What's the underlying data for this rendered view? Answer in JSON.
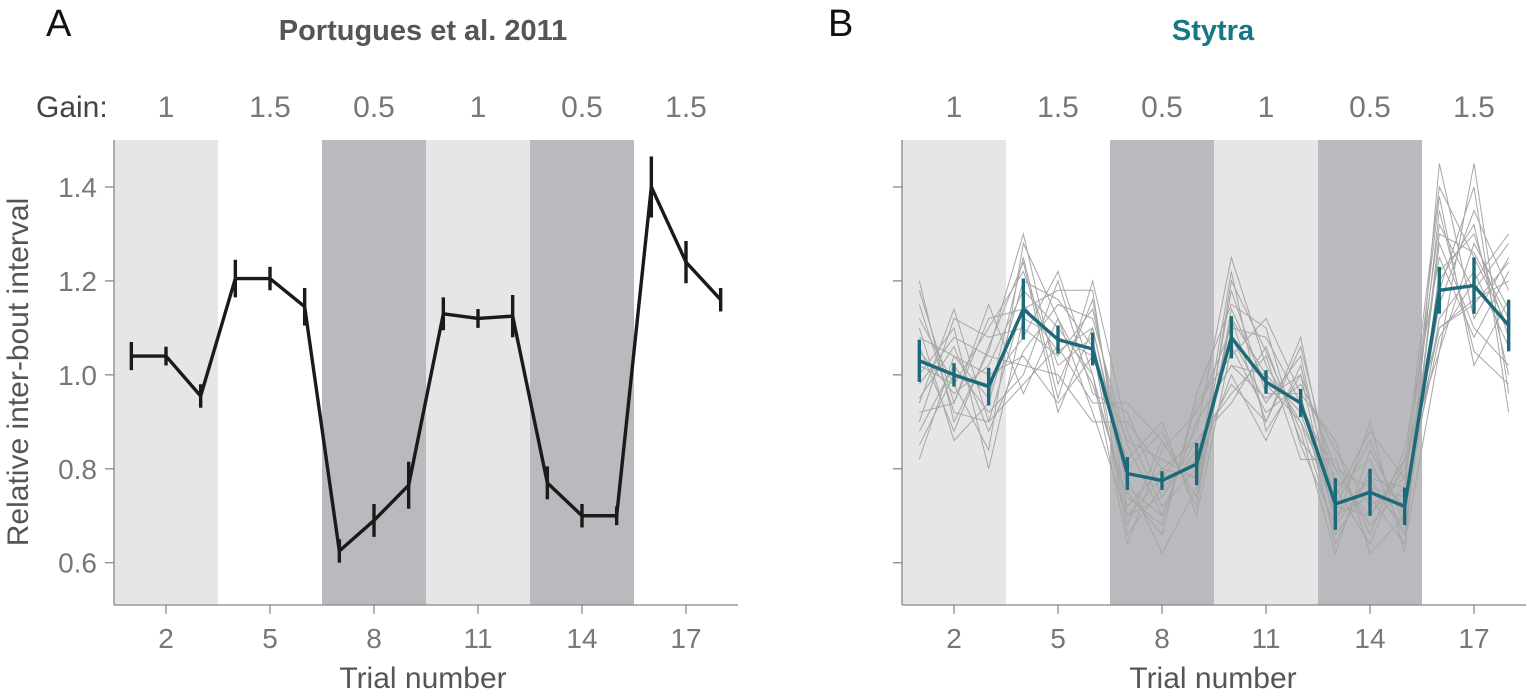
{
  "figure": {
    "panels": [
      {
        "letter": "A",
        "title": "Portugues et al. 2011",
        "gain_label": "Gain:"
      },
      {
        "letter": "B",
        "title": "Stytra",
        "gain_label": ""
      }
    ],
    "colors": {
      "panel_b_title": "#147985",
      "series_a": "#1a1a1a",
      "series_b": "#1c6a79",
      "individual_traces": "#a6a6a6",
      "gain_1": "#e6e6e6",
      "gain_1_5": "#ffffff",
      "gain_0_5": "#b9babd"
    }
  },
  "chart_data": [
    {
      "type": "line",
      "title": "Portugues et al. 2011",
      "xlabel": "Trial number",
      "ylabel": "Relative inter-bout interval",
      "xticks": [
        "2",
        "5",
        "8",
        "11",
        "14",
        "17"
      ],
      "yticks": [
        "0.6",
        "0.8",
        "1.0",
        "1.2",
        "1.4"
      ],
      "xlim": [
        0.5,
        18.5
      ],
      "ylim": [
        0.51,
        1.5
      ],
      "gain_blocks": [
        {
          "gain": "1",
          "trials": [
            1,
            3
          ]
        },
        {
          "gain": "1.5",
          "trials": [
            4,
            6
          ]
        },
        {
          "gain": "0.5",
          "trials": [
            7,
            9
          ]
        },
        {
          "gain": "1",
          "trials": [
            10,
            12
          ]
        },
        {
          "gain": "0.5",
          "trials": [
            13,
            15
          ]
        },
        {
          "gain": "1.5",
          "trials": [
            16,
            18
          ]
        }
      ],
      "series": [
        {
          "x": [
            1,
            2,
            3,
            4,
            5,
            6,
            7,
            8,
            9,
            10,
            11,
            12,
            13,
            14,
            15,
            16,
            17,
            18
          ],
          "values": [
            1.04,
            1.04,
            0.955,
            1.205,
            1.205,
            1.145,
            0.625,
            0.69,
            0.765,
            1.13,
            1.12,
            1.125,
            0.77,
            0.7,
            0.7,
            1.4,
            1.24,
            1.16
          ],
          "err": [
            0.03,
            0.02,
            0.025,
            0.04,
            0.025,
            0.04,
            0.025,
            0.035,
            0.05,
            0.035,
            0.02,
            0.045,
            0.035,
            0.025,
            0.02,
            0.065,
            0.045,
            0.025
          ]
        }
      ],
      "grid": false
    },
    {
      "type": "line",
      "title": "Stytra",
      "xlabel": "Trial number",
      "ylabel": "",
      "xticks": [
        "2",
        "5",
        "8",
        "11",
        "14",
        "17"
      ],
      "yticks": [],
      "xlim": [
        0.5,
        18.5
      ],
      "ylim": [
        0.51,
        1.5
      ],
      "gain_blocks": [
        {
          "gain": "1",
          "trials": [
            1,
            3
          ]
        },
        {
          "gain": "1.5",
          "trials": [
            4,
            6
          ]
        },
        {
          "gain": "0.5",
          "trials": [
            7,
            9
          ]
        },
        {
          "gain": "1",
          "trials": [
            10,
            12
          ]
        },
        {
          "gain": "0.5",
          "trials": [
            13,
            15
          ]
        },
        {
          "gain": "1.5",
          "trials": [
            16,
            18
          ]
        }
      ],
      "series": [
        {
          "x": [
            1,
            2,
            3,
            4,
            5,
            6,
            7,
            8,
            9,
            10,
            11,
            12,
            13,
            14,
            15,
            16,
            17,
            18
          ],
          "values": [
            1.03,
            1.0,
            0.975,
            1.14,
            1.075,
            1.055,
            0.79,
            0.775,
            0.81,
            1.08,
            0.985,
            0.94,
            0.725,
            0.75,
            0.72,
            1.18,
            1.19,
            1.105
          ],
          "err": [
            0.045,
            0.025,
            0.04,
            0.065,
            0.03,
            0.035,
            0.035,
            0.02,
            0.045,
            0.045,
            0.025,
            0.03,
            0.055,
            0.05,
            0.04,
            0.05,
            0.06,
            0.055
          ]
        }
      ],
      "individual_traces": [
        [
          1.05,
          0.96,
          1.02,
          1.18,
          1.1,
          1.0,
          0.72,
          0.8,
          0.78,
          1.12,
          1.0,
          0.92,
          0.7,
          0.78,
          0.66,
          1.22,
          1.3,
          1.08
        ],
        [
          0.95,
          1.06,
          0.88,
          1.05,
          1.15,
          1.12,
          0.85,
          0.7,
          0.9,
          1.02,
          0.95,
          1.0,
          0.8,
          0.68,
          0.76,
          1.1,
          1.16,
          1.2
        ],
        [
          1.12,
          0.98,
          1.1,
          1.22,
          1.02,
          1.08,
          0.68,
          0.86,
          0.74,
          1.2,
          1.05,
          0.88,
          0.62,
          0.84,
          0.7,
          1.35,
          1.05,
          0.98
        ],
        [
          0.88,
          1.02,
          0.92,
          1.0,
          1.2,
          0.96,
          0.92,
          0.74,
          0.84,
          0.98,
          0.9,
          1.06,
          0.76,
          0.64,
          0.82,
          1.05,
          1.28,
          1.14
        ],
        [
          1.2,
          0.9,
          1.05,
          1.3,
          0.98,
          1.16,
          0.75,
          0.66,
          0.96,
          1.15,
          1.1,
          0.85,
          0.68,
          0.9,
          0.62,
          1.45,
          1.12,
          1.25
        ],
        [
          1.0,
          1.1,
          0.8,
          1.12,
          1.08,
          1.04,
          0.82,
          0.9,
          0.7,
          1.06,
          0.92,
          0.98,
          0.84,
          0.72,
          0.78,
          1.18,
          1.4,
          0.92
        ],
        [
          0.92,
          0.94,
          1.15,
          0.96,
          1.12,
          0.92,
          0.7,
          0.78,
          0.88,
          1.25,
          1.02,
          0.9,
          0.66,
          0.76,
          0.74,
          1.08,
          1.2,
          1.3
        ],
        [
          1.08,
          1.04,
          0.95,
          1.25,
          0.95,
          1.2,
          0.88,
          0.72,
          0.8,
          1.0,
          0.86,
          1.02,
          0.72,
          0.86,
          0.68,
          1.28,
          1.1,
          1.02
        ],
        [
          0.85,
          1.0,
          0.98,
          1.08,
          1.22,
          1.0,
          0.64,
          0.84,
          0.92,
          1.1,
          1.08,
          0.94,
          0.78,
          0.7,
          0.8,
          1.4,
          1.25,
          1.1
        ],
        [
          1.15,
          0.92,
          0.9,
          1.15,
          1.05,
          1.1,
          0.78,
          0.62,
          0.76,
          1.18,
          0.96,
          0.96,
          0.64,
          0.8,
          0.72,
          1.15,
          1.35,
          1.18
        ],
        [
          0.98,
          1.08,
          1.04,
          1.02,
          1.0,
          0.9,
          0.9,
          0.8,
          0.86,
          0.96,
          1.04,
          0.82,
          0.82,
          0.66,
          0.84,
          1.25,
          1.08,
          1.22
        ],
        [
          1.1,
          0.86,
          0.94,
          1.2,
          1.16,
          1.06,
          0.66,
          0.76,
          0.82,
          1.08,
          0.94,
          1.04,
          0.7,
          0.74,
          0.64,
          1.05,
          1.45,
          0.96
        ],
        [
          0.9,
          1.12,
          1.08,
          1.1,
          1.04,
          1.14,
          0.8,
          0.88,
          0.72,
          1.14,
          0.98,
          0.9,
          0.74,
          0.88,
          0.78,
          1.32,
          1.18,
          1.28
        ],
        [
          1.02,
          0.98,
          0.84,
          1.28,
          1.12,
          0.98,
          0.74,
          0.68,
          0.94,
          1.04,
          1.12,
          0.96,
          0.86,
          0.62,
          0.7,
          1.12,
          1.22,
          1.06
        ],
        [
          0.82,
          1.04,
          1.0,
          1.04,
          0.94,
          1.04,
          0.86,
          0.82,
          0.78,
          1.22,
          0.88,
          1.0,
          0.68,
          0.78,
          0.76,
          1.38,
          1.02,
          1.16
        ],
        [
          1.18,
          0.94,
          1.12,
          1.14,
          1.18,
          1.18,
          0.7,
          0.74,
          0.86,
          0.94,
          1.06,
          0.86,
          0.76,
          0.82,
          0.66,
          1.2,
          1.32,
          1.0
        ],
        [
          0.94,
          1.14,
          0.9,
          0.98,
          1.06,
          0.94,
          0.94,
          0.86,
          0.74,
          1.12,
          0.9,
          1.08,
          0.72,
          0.7,
          0.82,
          1.1,
          1.15,
          1.24
        ],
        [
          1.06,
          0.88,
          1.06,
          1.24,
          0.92,
          1.1,
          0.76,
          0.7,
          0.9,
          1.02,
          1.0,
          0.92,
          0.8,
          0.76,
          0.68,
          1.3,
          1.26,
          1.12
        ]
      ],
      "grid": false
    }
  ]
}
